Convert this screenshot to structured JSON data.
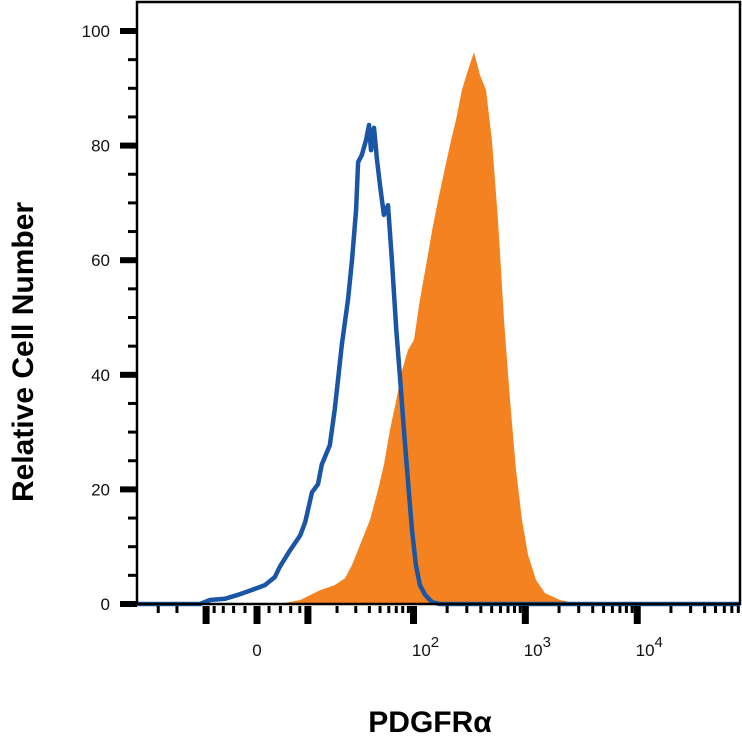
{
  "chart_data": {
    "type": "area",
    "title": "",
    "xlabel": "PDGFRα",
    "ylabel": "Relative Cell Number",
    "x_scale": "biexponential",
    "ylim": [
      0,
      100
    ],
    "xlim": [
      -47,
      83000
    ],
    "y_ticks": [
      "0",
      "20",
      "40",
      "60",
      "80",
      "100"
    ],
    "x_ticks": [
      {
        "value": 0,
        "base": "0",
        "exp": ""
      },
      {
        "value": 100,
        "base": "10",
        "exp": "2"
      },
      {
        "value": 1000,
        "base": "10",
        "exp": "3"
      },
      {
        "value": 10000,
        "base": "10",
        "exp": "4"
      }
    ],
    "grid": false,
    "series": [
      {
        "style": "filled",
        "color": "#f58220",
        "points": [
          [
            -47,
            0
          ],
          [
            3.9,
            0
          ],
          [
            8.1,
            0.7
          ],
          [
            13.5,
            2.4
          ],
          [
            19.0,
            3.3
          ],
          [
            23.8,
            4.5
          ],
          [
            27.7,
            6.8
          ],
          [
            32.8,
            10.3
          ],
          [
            40.5,
            14.7
          ],
          [
            47.9,
            19.9
          ],
          [
            54.2,
            24.3
          ],
          [
            61.5,
            30.4
          ],
          [
            70,
            35.6
          ],
          [
            79,
            40.8
          ],
          [
            89,
            44.3
          ],
          [
            101,
            46.1
          ],
          [
            114,
            53.1
          ],
          [
            130,
            59.2
          ],
          [
            147,
            65.3
          ],
          [
            166,
            70.5
          ],
          [
            188,
            75.4
          ],
          [
            212,
            80.1
          ],
          [
            240,
            84.5
          ],
          [
            271,
            89.7
          ],
          [
            307,
            93.2
          ],
          [
            348,
            96.3
          ],
          [
            393,
            92.3
          ],
          [
            445,
            89.7
          ],
          [
            503,
            81.0
          ],
          [
            570,
            67.0
          ],
          [
            644,
            49.6
          ],
          [
            729,
            35.6
          ],
          [
            825,
            23.4
          ],
          [
            934,
            14.7
          ],
          [
            1056,
            8.6
          ],
          [
            1246,
            4.2
          ],
          [
            1499,
            1.9
          ],
          [
            2040,
            0.7
          ],
          [
            3080,
            0
          ],
          [
            82960,
            0
          ]
        ]
      },
      {
        "style": "outline",
        "color": "#1a55a6",
        "points": [
          [
            -47,
            0
          ],
          [
            -11.7,
            0
          ],
          [
            -9.0,
            0.7
          ],
          [
            -5.7,
            0.9
          ],
          [
            -2.9,
            1.7
          ],
          [
            -1.2,
            2.3
          ],
          [
            1.3,
            3.3
          ],
          [
            3.0,
            4.7
          ],
          [
            3.9,
            6.5
          ],
          [
            5.9,
            9.4
          ],
          [
            8.1,
            12.0
          ],
          [
            9.3,
            14.3
          ],
          [
            11.1,
            19.5
          ],
          [
            12.9,
            20.9
          ],
          [
            14.1,
            24.3
          ],
          [
            17.0,
            27.7
          ],
          [
            19.0,
            33.9
          ],
          [
            20.4,
            39.1
          ],
          [
            22.2,
            45.2
          ],
          [
            25.4,
            53.1
          ],
          [
            27.7,
            60.0
          ],
          [
            30.2,
            68.8
          ],
          [
            31.5,
            77.1
          ],
          [
            34.2,
            78.4
          ],
          [
            37.3,
            81.0
          ],
          [
            39.7,
            83.6
          ],
          [
            41.4,
            79.2
          ],
          [
            44.1,
            83.1
          ],
          [
            46.9,
            77.5
          ],
          [
            49.9,
            73.1
          ],
          [
            54.2,
            67.9
          ],
          [
            59,
            69.6
          ],
          [
            64,
            60.0
          ],
          [
            70,
            47.8
          ],
          [
            76,
            39.1
          ],
          [
            82,
            30.4
          ],
          [
            89,
            21.6
          ],
          [
            97,
            12.9
          ],
          [
            105,
            6.8
          ],
          [
            114,
            3.3
          ],
          [
            127,
            1.6
          ],
          [
            147,
            0.3
          ],
          [
            173,
            0
          ],
          [
            82960,
            0
          ]
        ]
      }
    ]
  }
}
